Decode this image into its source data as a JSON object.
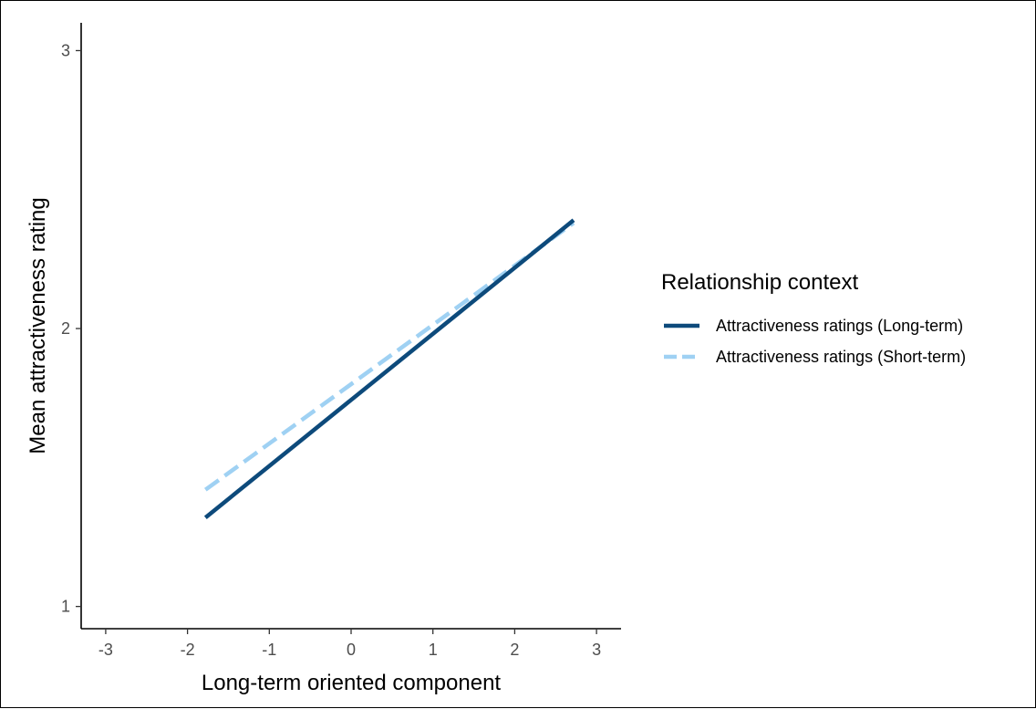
{
  "chart_data": {
    "type": "line",
    "title": "",
    "xlabel": "Long-term oriented component",
    "ylabel": "Mean attractiveness rating",
    "xlim": [
      -3.3,
      3.3
    ],
    "ylim": [
      0.92,
      3.1
    ],
    "xticks": [
      -3,
      -2,
      -1,
      0,
      1,
      2,
      3
    ],
    "yticks": [
      1,
      2,
      3
    ],
    "grid": false,
    "legend": {
      "title": "Relationship context",
      "placement": "right"
    },
    "series": [
      {
        "name": "Attractiveness ratings (Long-term)",
        "x": [
          -1.78,
          2.72
        ],
        "y": [
          1.32,
          2.39
        ],
        "color": "#0d4a7b",
        "dash": "solid"
      },
      {
        "name": "Attractiveness ratings (Short-term)",
        "x": [
          -1.78,
          2.72
        ],
        "y": [
          1.42,
          2.38
        ],
        "color": "#9fd1f3",
        "dash": "dashed"
      }
    ]
  }
}
